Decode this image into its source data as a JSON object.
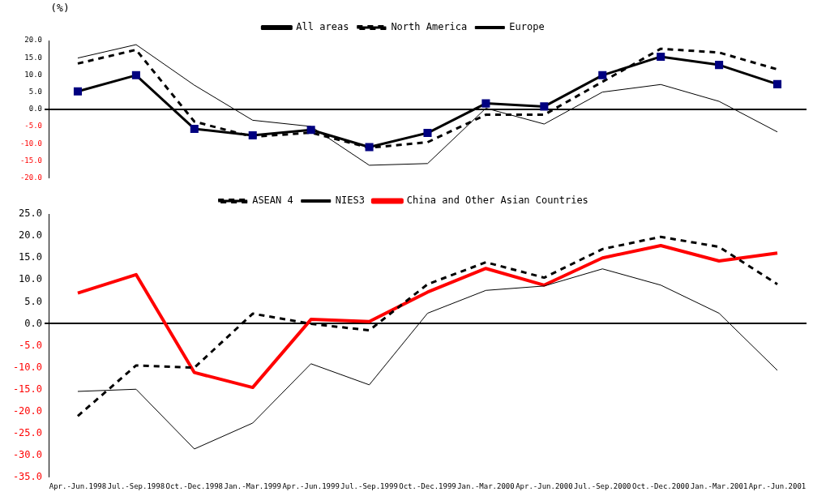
{
  "chart_data": [
    {
      "type": "line",
      "ylabel": "(%)",
      "categories": [
        null,
        null,
        null,
        null,
        null,
        null,
        null,
        null,
        null,
        null,
        null,
        null,
        null
      ],
      "ylim": [
        -20,
        20
      ],
      "yticks": [
        {
          "value": -20,
          "label": "-20.0"
        },
        {
          "value": -15,
          "label": "-15.0"
        },
        {
          "value": -10,
          "label": "-10.0"
        },
        {
          "value": -5,
          "label": "-5.0"
        },
        {
          "value": 0,
          "label": "0.0"
        },
        {
          "value": 5,
          "label": "5.0"
        },
        {
          "value": 10,
          "label": "10.0"
        },
        {
          "value": 15,
          "label": "15.0"
        },
        {
          "value": 20,
          "label": "20.0"
        }
      ],
      "tick_labels": "y",
      "legend": "top",
      "series": [
        {
          "name": "All areas",
          "color": "#000000",
          "marker": "square",
          "line_style": "solid",
          "values": [
            5.2,
            9.9,
            -5.7,
            -7.6,
            -6.0,
            -11.0,
            -6.9,
            1.7,
            0.8,
            9.9,
            15.3,
            12.9,
            7.3
          ]
        },
        {
          "name": "North America",
          "color": "#000000",
          "line_style": "dashed",
          "values": [
            13.3,
            17.3,
            -3.6,
            -8.0,
            -6.8,
            -11.2,
            -9.6,
            -1.6,
            -1.6,
            8.0,
            17.6,
            16.5,
            11.6
          ]
        },
        {
          "name": "Europe",
          "color": "#000000",
          "line_style": "solid",
          "values": [
            14.9,
            18.8,
            7.0,
            -3.2,
            -5.0,
            -16.3,
            -15.8,
            0.3,
            -4.3,
            5.0,
            7.2,
            2.3,
            -6.6
          ]
        }
      ]
    },
    {
      "type": "line",
      "categories": [
        "Apr.-Jun.1998",
        "Jul.-Sep.1998",
        "Oct.-Dec.1998",
        "Jan.-Mar.1999",
        "Apr.-Jun.1999",
        "Jul.-Sep.1999",
        "Oct.-Dec.1999",
        "Jan.-Mar.2000",
        "Apr.-Jun.2000",
        "Jul.-Sep.2000",
        "Oct.-Dec.2000",
        "Jan.-Mar.2001",
        "Apr.-Jun.2001"
      ],
      "ylim": [
        -35,
        25
      ],
      "yticks": [
        {
          "value": -35,
          "label": "-35.0"
        },
        {
          "value": -30,
          "label": "-30.0"
        },
        {
          "value": -25,
          "label": "-25.0"
        },
        {
          "value": -20,
          "label": "-20.0"
        },
        {
          "value": -15,
          "label": "-15.0"
        },
        {
          "value": -10,
          "label": "-10.0"
        },
        {
          "value": -5,
          "label": "-5.0"
        },
        {
          "value": 0,
          "label": "0.0"
        },
        {
          "value": 5,
          "label": "5.0"
        },
        {
          "value": 10,
          "label": "10.0"
        },
        {
          "value": 15,
          "label": "15.0"
        },
        {
          "value": 20,
          "label": "20.0"
        },
        {
          "value": 25,
          "label": "25.0"
        }
      ],
      "legend": "top",
      "series": [
        {
          "name": "ASEAN 4",
          "color": "#000000",
          "line_style": "dashed",
          "values": [
            -21.0,
            -9.5,
            -10.0,
            2.3,
            0.0,
            -1.5,
            9.0,
            14.0,
            10.5,
            17.0,
            19.8,
            17.5,
            9.0
          ]
        },
        {
          "name": "NIES3",
          "color": "#000000",
          "line_style": "solid",
          "values": [
            -15.4,
            -14.9,
            -28.5,
            -22.6,
            -9.1,
            -13.9,
            2.4,
            7.6,
            8.6,
            12.5,
            8.8,
            2.4,
            -10.6
          ]
        },
        {
          "name": "China and Other Asian Countries",
          "color": "#ff0000",
          "line_style": "solid",
          "values": [
            7.0,
            11.2,
            -11.1,
            -14.5,
            1.0,
            0.5,
            7.2,
            12.6,
            8.8,
            15.0,
            17.8,
            14.3,
            16.1
          ]
        }
      ]
    }
  ]
}
